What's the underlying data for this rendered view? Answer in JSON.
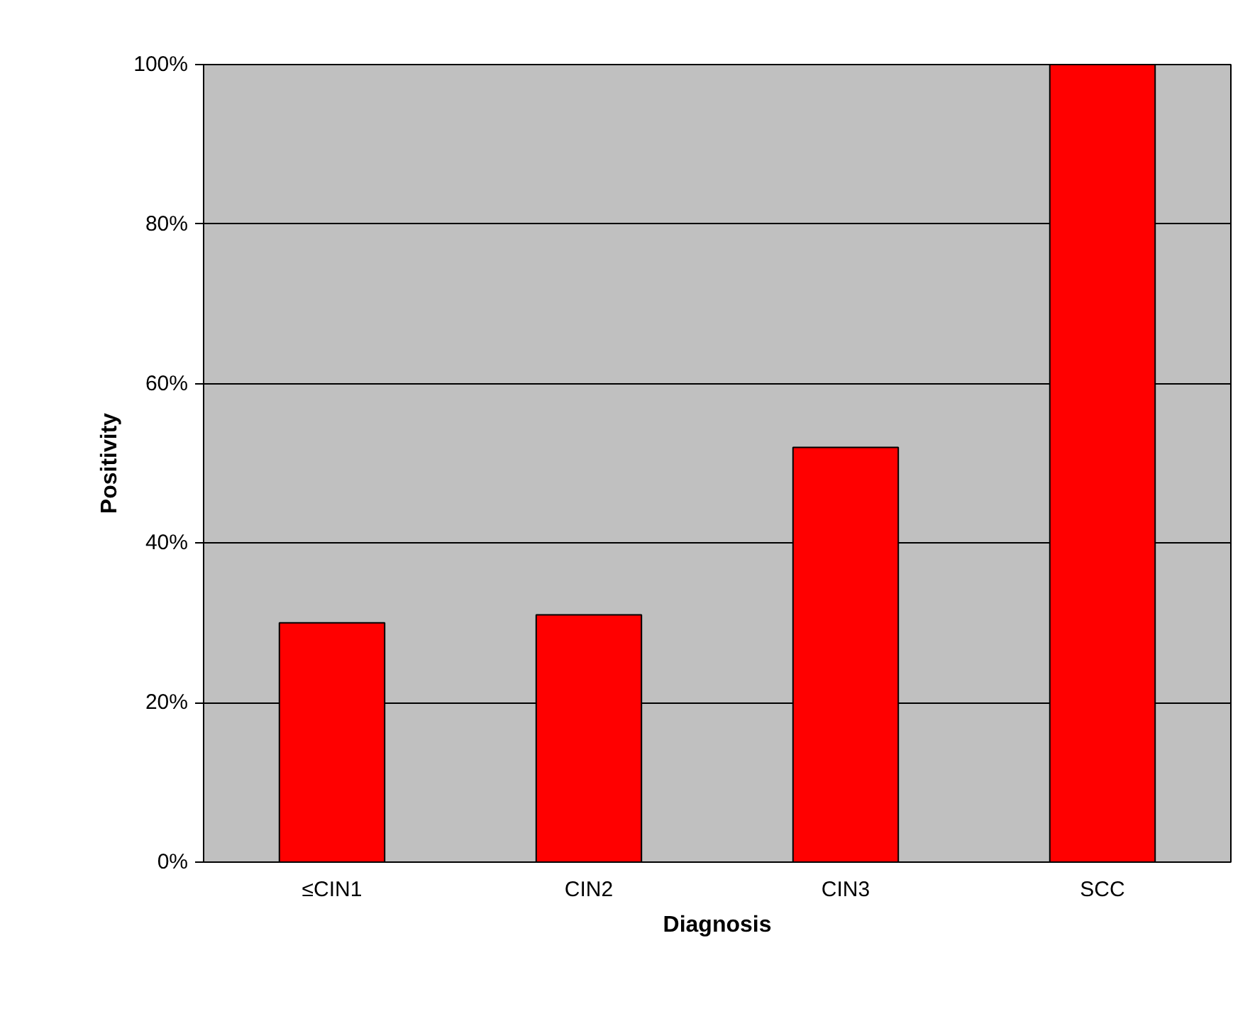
{
  "chart_data": {
    "type": "bar",
    "xlabel": "Diagnosis",
    "ylabel": "Positivity",
    "categories": [
      "≤CIN1",
      "CIN2",
      "CIN3",
      "SCC"
    ],
    "values": [
      30,
      31,
      52,
      100
    ],
    "color": "#ff0000",
    "ylim": [
      0,
      100
    ],
    "yticks": [
      {
        "value": 0,
        "label": "0%"
      },
      {
        "value": 20,
        "label": "20%"
      },
      {
        "value": 40,
        "label": "40%"
      },
      {
        "value": 60,
        "label": "60%"
      },
      {
        "value": 80,
        "label": "80%"
      },
      {
        "value": 100,
        "label": "100%"
      }
    ],
    "grid": "y"
  }
}
